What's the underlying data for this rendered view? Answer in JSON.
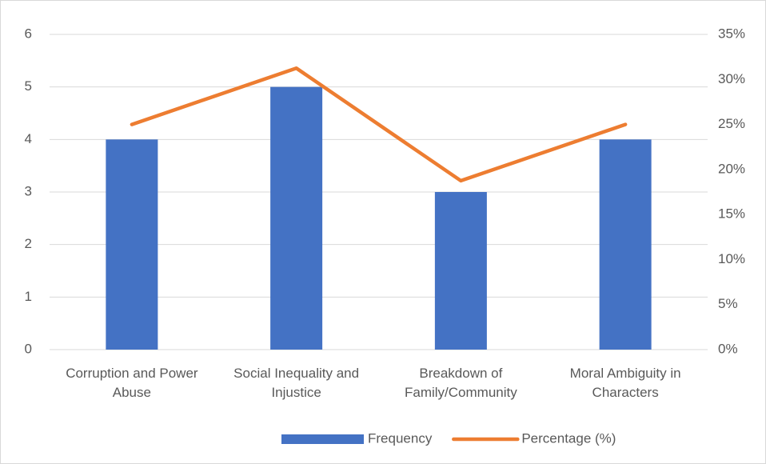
{
  "chart_data": {
    "type": "bar",
    "categories": [
      "Corruption and Power Abuse",
      "Social Inequality and Injustice",
      "Breakdown of Family/Community",
      "Moral Ambiguity in Characters"
    ],
    "series": [
      {
        "name": "Frequency",
        "type": "bar",
        "color": "#4472c4",
        "values": [
          4,
          5,
          3,
          4
        ]
      },
      {
        "name": "Percentage (%)",
        "type": "line",
        "axis": "y2",
        "color": "#ed7d31",
        "values": [
          25,
          31.25,
          18.75,
          25
        ]
      }
    ],
    "ylim": [
      0,
      6
    ],
    "yticks": [
      0,
      1,
      2,
      3,
      4,
      5,
      6
    ],
    "y2lim": [
      0,
      35
    ],
    "y2ticks": [
      {
        "value": 0,
        "label": "0%"
      },
      {
        "value": 5,
        "label": "5%"
      },
      {
        "value": 10,
        "label": "10%"
      },
      {
        "value": 15,
        "label": "15%"
      },
      {
        "value": 20,
        "label": "20%"
      },
      {
        "value": 25,
        "label": "25%"
      },
      {
        "value": 30,
        "label": "30%"
      },
      {
        "value": 35,
        "label": "35%"
      }
    ],
    "grid": true,
    "legend": "bottom"
  }
}
